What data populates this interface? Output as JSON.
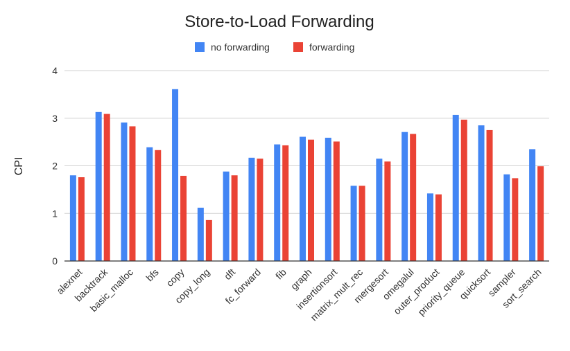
{
  "chart_data": {
    "type": "bar",
    "title": "Store-to-Load Forwarding",
    "xlabel": "",
    "ylabel": "CPI",
    "ylim": [
      0,
      4
    ],
    "yticks": [
      0,
      1,
      2,
      3,
      4
    ],
    "grid": true,
    "legend_position": "top",
    "categories": [
      "alexnet",
      "backtrack",
      "basic_malloc",
      "bfs",
      "copy",
      "copy_long",
      "dft",
      "fc_forward",
      "fib",
      "graph",
      "insertionsort",
      "matrix_mult_rec",
      "mergesort",
      "omegalul",
      "outer_product",
      "priority_queue",
      "quicksort",
      "sampler",
      "sort_search"
    ],
    "series": [
      {
        "name": "no forwarding",
        "color": "#4285f4",
        "values": [
          1.8,
          3.13,
          2.91,
          2.39,
          3.61,
          1.12,
          1.88,
          2.17,
          2.45,
          2.61,
          2.59,
          1.58,
          2.15,
          2.71,
          1.42,
          3.07,
          2.85,
          1.82,
          2.35
        ]
      },
      {
        "name": "forwarding",
        "color": "#ea4335",
        "values": [
          1.76,
          3.09,
          2.83,
          2.33,
          1.79,
          0.86,
          1.8,
          2.15,
          2.43,
          2.55,
          2.51,
          1.58,
          2.09,
          2.67,
          1.4,
          2.97,
          2.75,
          1.74,
          1.99
        ]
      }
    ]
  }
}
